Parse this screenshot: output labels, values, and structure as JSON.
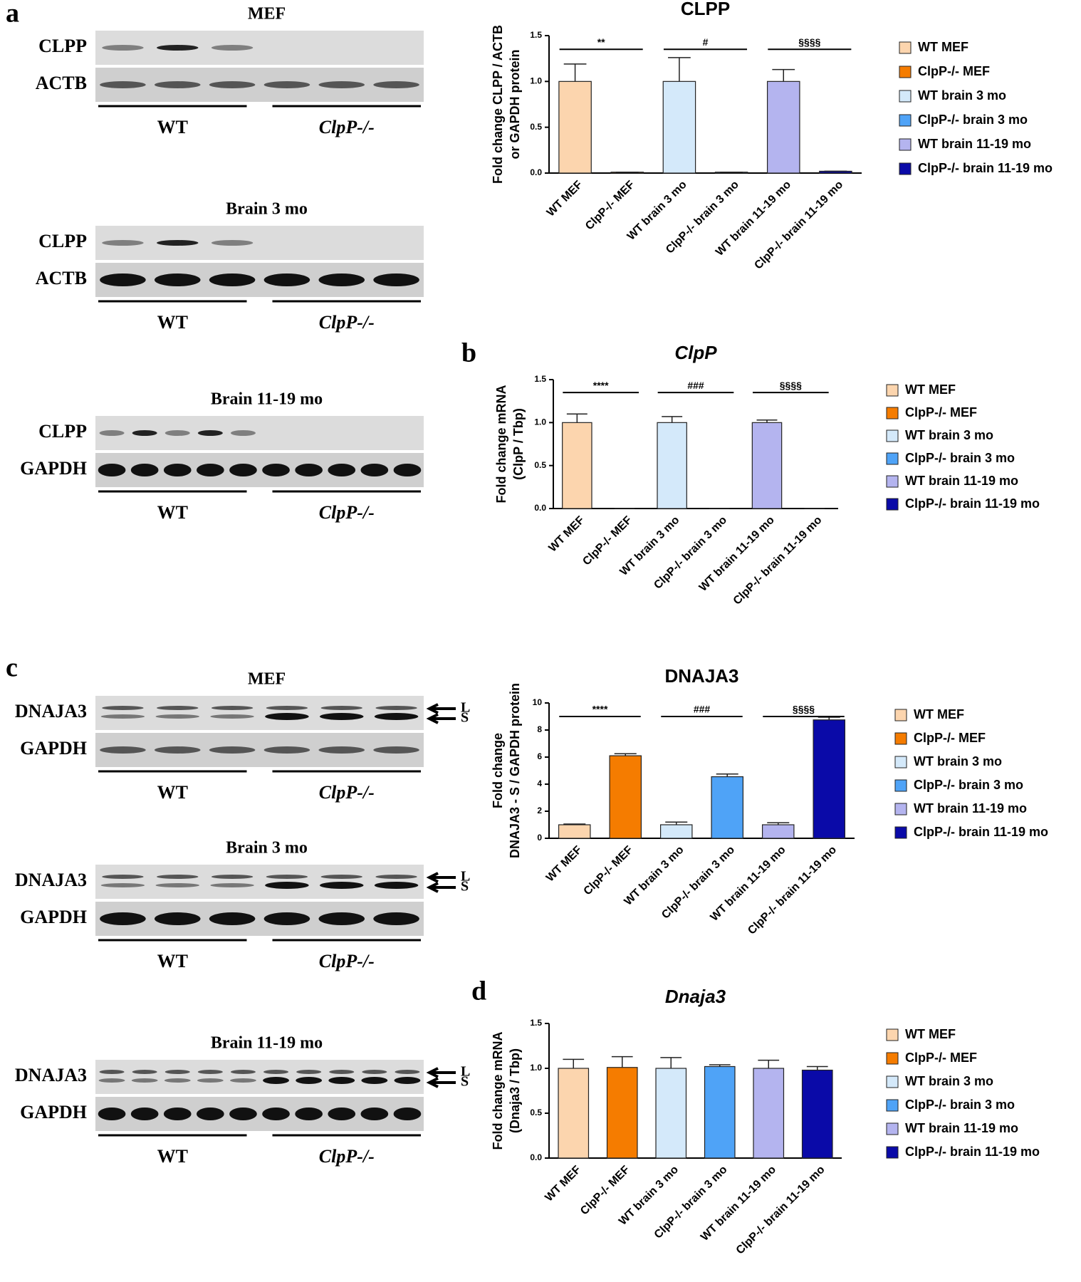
{
  "panel_labels": [
    "a",
    "b",
    "c",
    "d"
  ],
  "blots": [
    {
      "title": "MEF",
      "rows": [
        "CLPP",
        "ACTB"
      ],
      "groups": [
        "WT",
        "ClpP-/-"
      ]
    },
    {
      "title": "Brain 3 mo",
      "rows": [
        "CLPP",
        "ACTB"
      ],
      "groups": [
        "WT",
        "ClpP-/-"
      ]
    },
    {
      "title": "Brain 11-19 mo",
      "rows": [
        "CLPP",
        "GAPDH"
      ],
      "groups": [
        "WT",
        "ClpP-/-"
      ]
    },
    {
      "title": "MEF",
      "rows": [
        "DNAJA3",
        "GAPDH"
      ],
      "groups": [
        "WT",
        "ClpP-/-"
      ],
      "arrows": [
        "L",
        "S"
      ]
    },
    {
      "title": "Brain 3 mo",
      "rows": [
        "DNAJA3",
        "GAPDH"
      ],
      "groups": [
        "WT",
        "ClpP-/-"
      ],
      "arrows": [
        "L",
        "S"
      ]
    },
    {
      "title": "Brain 11-19 mo",
      "rows": [
        "DNAJA3",
        "GAPDH"
      ],
      "groups": [
        "WT",
        "ClpP-/-"
      ],
      "arrows": [
        "L",
        "S"
      ]
    }
  ],
  "chart_data": [
    {
      "type": "bar",
      "title": "CLPP",
      "ylabel": [
        "Fold change CLPP / ACTB",
        "or GAPDH protein"
      ],
      "categories": [
        "WT MEF",
        "ClpP-/- MEF",
        "WT brain 3 mo",
        "ClpP-/- brain 3 mo",
        "WT brain 11-19 mo",
        "ClpP-/- brain 11-19 mo"
      ],
      "values": [
        1,
        0.01,
        1,
        0.01,
        1,
        0.02
      ],
      "errors": [
        0.19,
        0,
        0.26,
        0,
        0.13,
        0
      ],
      "colors": [
        "#fcd5ae",
        "#f57c00",
        "#d4e9fa",
        "#4fa3f7",
        "#b4b4ef",
        "#0a0aa8"
      ],
      "ylim": [
        0,
        1.5
      ],
      "yticks": [
        {
          "value": 0,
          "label": "0.0"
        },
        0.5,
        {
          "value": 1,
          "label": "1.0"
        },
        1.5
      ],
      "significance": [
        "**",
        "#",
        "§§§§"
      ]
    },
    {
      "type": "bar",
      "title": "ClpP",
      "ylabel": [
        "Fold change mRNA",
        "(ClpP / Tbp)"
      ],
      "categories": [
        "WT MEF",
        "ClpP-/- MEF",
        "WT brain 3 mo",
        "ClpP-/- brain 3 mo",
        "WT brain 11-19 mo",
        "ClpP-/- brain 11-19 mo"
      ],
      "values": [
        1,
        0,
        1,
        0,
        1,
        0
      ],
      "errors": [
        0.1,
        0,
        0.07,
        0,
        0.03,
        0
      ],
      "colors": [
        "#fcd5ae",
        "#f57c00",
        "#d4e9fa",
        "#4fa3f7",
        "#b4b4ef",
        "#0a0aa8"
      ],
      "ylim": [
        0,
        1.5
      ],
      "yticks": [
        {
          "value": 0,
          "label": "0.0"
        },
        0.5,
        {
          "value": 1,
          "label": "1.0"
        },
        1.5
      ],
      "significance": [
        "****",
        "###",
        "§§§§"
      ]
    },
    {
      "type": "bar",
      "title": "DNAJA3",
      "ylabel": [
        "Fold change",
        "DNAJA3 - S / GAPDH protein"
      ],
      "categories": [
        "WT MEF",
        "ClpP-/- MEF",
        "WT brain 3 mo",
        "ClpP-/- brain 3 mo",
        "WT brain 11-19 mo",
        "ClpP-/- brain 11-19 mo"
      ],
      "values": [
        1,
        6.1,
        1,
        4.55,
        1,
        8.75
      ],
      "errors": [
        0.05,
        0.15,
        0.2,
        0.2,
        0.15,
        0.2
      ],
      "colors": [
        "#fcd5ae",
        "#f57c00",
        "#d4e9fa",
        "#4fa3f7",
        "#b4b4ef",
        "#0a0aa8"
      ],
      "ylim": [
        0,
        10
      ],
      "yticks": [
        0,
        2,
        4,
        6,
        8,
        10
      ],
      "significance": [
        "****",
        "###",
        "§§§§"
      ]
    },
    {
      "type": "bar",
      "title": "Dnaja3",
      "ylabel": [
        "Fold change mRNA",
        "(Dnaja3 / Tbp)"
      ],
      "categories": [
        "WT MEF",
        "ClpP-/- MEF",
        "WT brain 3 mo",
        "ClpP-/- brain 3 mo",
        "WT brain 11-19 mo",
        "ClpP-/- brain 11-19 mo"
      ],
      "values": [
        1,
        1.01,
        1,
        1.02,
        1,
        0.98
      ],
      "errors": [
        0.1,
        0.12,
        0.12,
        0.02,
        0.09,
        0.04
      ],
      "colors": [
        "#fcd5ae",
        "#f57c00",
        "#d4e9fa",
        "#4fa3f7",
        "#b4b4ef",
        "#0a0aa8"
      ],
      "ylim": [
        0,
        1.5
      ],
      "yticks": [
        {
          "value": 0,
          "label": "0.0"
        },
        0.5,
        {
          "value": 1,
          "label": "1.0"
        },
        1.5
      ]
    }
  ]
}
